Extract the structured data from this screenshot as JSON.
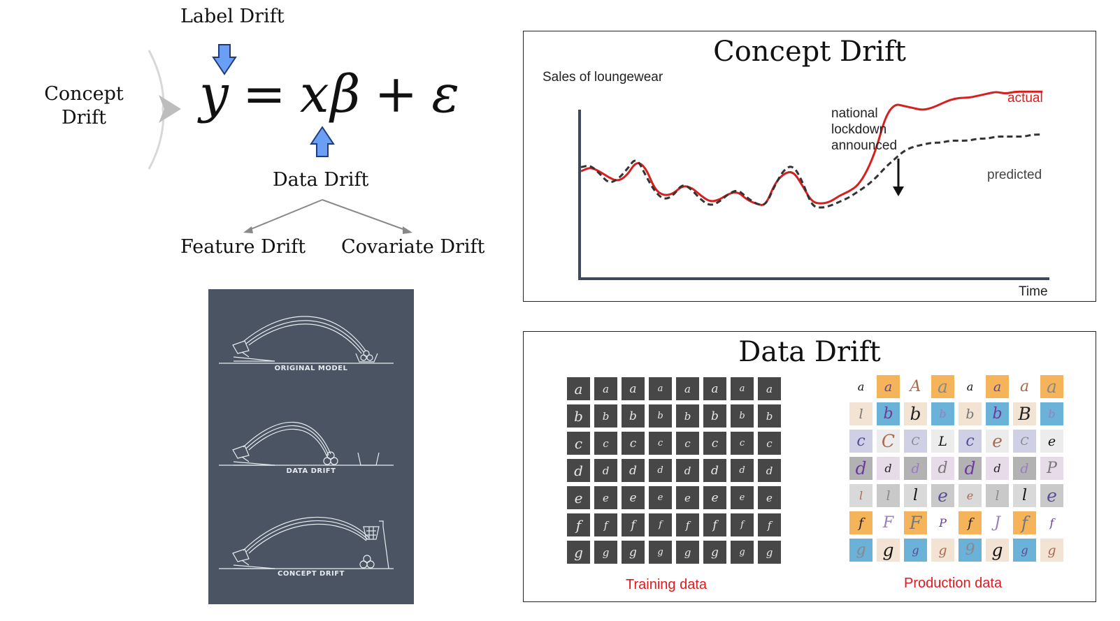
{
  "equation": {
    "label_drift": "Label Drift",
    "concept_drift": "Concept Drift",
    "lhs": "y",
    "equals": "=",
    "x": "x",
    "beta": "β",
    "plus": "+",
    "epsilon": "ε",
    "data_drift": "Data Drift",
    "feature_drift": "Feature Drift",
    "covariate_drift": "Covariate Drift",
    "arrow_color": "#6a9ff5"
  },
  "illustration": {
    "captions": [
      "ORIGINAL MODEL",
      "DATA DRIFT",
      "CONCEPT DRIFT"
    ],
    "background": "#4a5462"
  },
  "concept_panel": {
    "title": "Concept Drift",
    "annotation": [
      "national",
      "lockdown",
      "announced"
    ]
  },
  "chart_data": {
    "type": "line",
    "title": "Concept Drift",
    "ylabel": "Sales of loungewear",
    "xlabel": "Time",
    "series": [
      {
        "name": "actual",
        "color": "#d61f1f",
        "style": "solid",
        "x": [
          0,
          2,
          4,
          6,
          8,
          10,
          12,
          14,
          16,
          18,
          20,
          22,
          24,
          26,
          28,
          30,
          32,
          34,
          36,
          38,
          40,
          42,
          44,
          46,
          48,
          50,
          52,
          54,
          56,
          58,
          60,
          62,
          64,
          66,
          68,
          70,
          72,
          74,
          76,
          78,
          80,
          82,
          84,
          86,
          88,
          90,
          92,
          94,
          96,
          98,
          100
        ],
        "y": [
          52,
          54,
          52,
          49,
          47,
          50,
          57,
          54,
          43,
          40,
          41,
          45,
          44,
          40,
          37,
          38,
          41,
          42,
          38,
          36,
          35,
          46,
          51,
          52,
          45,
          37,
          36,
          37,
          40,
          42,
          45,
          52,
          63,
          79,
          85,
          84,
          83,
          82,
          83,
          85,
          87,
          88,
          88,
          89,
          90,
          91,
          90,
          91,
          91,
          91,
          91
        ]
      },
      {
        "name": "predicted",
        "color": "#333333",
        "style": "dashed",
        "x": [
          0,
          2,
          4,
          6,
          8,
          10,
          12,
          14,
          16,
          18,
          20,
          22,
          24,
          26,
          28,
          30,
          32,
          34,
          36,
          38,
          40,
          42,
          44,
          46,
          48,
          50,
          52,
          54,
          56,
          58,
          60,
          62,
          64,
          66,
          68,
          70,
          72,
          74,
          76,
          78,
          80,
          82,
          84,
          86,
          88,
          90,
          92,
          94,
          96,
          98,
          100
        ],
        "y": [
          54,
          55,
          51,
          46,
          48,
          53,
          59,
          50,
          42,
          38,
          40,
          46,
          43,
          38,
          35,
          37,
          41,
          43,
          39,
          36,
          35,
          45,
          53,
          55,
          47,
          35,
          34,
          35,
          37,
          39,
          42,
          45,
          49,
          54,
          58,
          62,
          64,
          65,
          66,
          66,
          67,
          67,
          67,
          68,
          68,
          69,
          69,
          69,
          69,
          70,
          70
        ]
      }
    ],
    "xlim": [
      0,
      100
    ],
    "ylim": [
      0,
      100
    ],
    "grid": false
  },
  "data_panel": {
    "title": "Data Drift",
    "training_label": "Training data",
    "production_label": "Production data",
    "training_rows": [
      [
        "a",
        "a",
        "a",
        "a",
        "a",
        "a",
        "a",
        "a"
      ],
      [
        "b",
        "b",
        "b",
        "b",
        "b",
        "b",
        "b",
        "b"
      ],
      [
        "c",
        "c",
        "c",
        "c",
        "c",
        "c",
        "c",
        "c"
      ],
      [
        "d",
        "d",
        "d",
        "d",
        "d",
        "d",
        "d",
        "d"
      ],
      [
        "e",
        "e",
        "e",
        "e",
        "e",
        "e",
        "e",
        "e"
      ],
      [
        "f",
        "f",
        "f",
        "f",
        "f",
        "f",
        "f",
        "f"
      ],
      [
        "g",
        "g",
        "g",
        "g",
        "g",
        "g",
        "g",
        "g"
      ]
    ],
    "production_rows": [
      [
        "a",
        "a",
        "A",
        "a",
        "a",
        "a",
        "a",
        "a"
      ],
      [
        "l",
        "b",
        "b",
        "b",
        "b",
        "b",
        "B",
        "b"
      ],
      [
        "c",
        "C",
        "C",
        "L",
        "c",
        "e",
        "C",
        "e"
      ],
      [
        "d",
        "d",
        "d",
        "d",
        "d",
        "d",
        "d",
        "P"
      ],
      [
        "l",
        "l",
        "l",
        "e",
        "e",
        "l",
        "l",
        "e"
      ],
      [
        "f",
        "F",
        "F",
        "P",
        "f",
        "J",
        "f",
        "f"
      ],
      [
        "g",
        "g",
        "g",
        "g",
        "9",
        "g",
        "g",
        "g"
      ]
    ]
  }
}
